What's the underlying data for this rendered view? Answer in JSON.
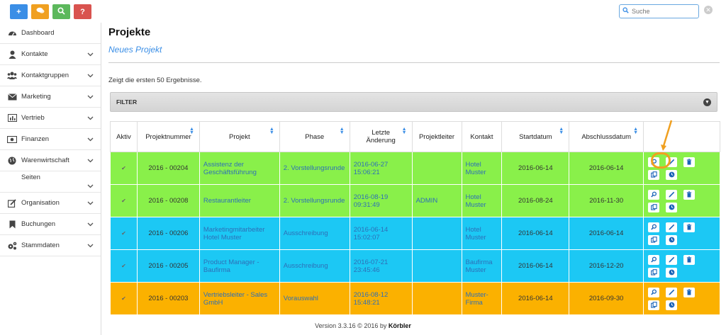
{
  "quick_actions": [
    {
      "name": "add",
      "icon": "plus-icon",
      "color": "#3a8ee6",
      "glyph": "+"
    },
    {
      "name": "chat",
      "icon": "chat-icon",
      "color": "#f0a020",
      "glyph": ""
    },
    {
      "name": "search",
      "icon": "search-icon",
      "color": "#5cb85c",
      "glyph": ""
    },
    {
      "name": "help",
      "icon": "question-icon",
      "color": "#d9534f",
      "glyph": "?"
    }
  ],
  "search": {
    "placeholder": "Suche"
  },
  "sidebar": {
    "items": [
      {
        "label": "Dashboard",
        "icon": "dashboard-icon",
        "chevron": false
      },
      {
        "label": "Kontakte",
        "icon": "user-icon",
        "chevron": true
      },
      {
        "label": "Kontaktgruppen",
        "icon": "users-icon",
        "chevron": true
      },
      {
        "label": "Marketing",
        "icon": "envelope-icon",
        "chevron": true
      },
      {
        "label": "Vertrieb",
        "icon": "chart-icon",
        "chevron": true
      },
      {
        "label": "Finanzen",
        "icon": "money-icon",
        "chevron": true
      },
      {
        "label": "Warenwirtschaft",
        "icon": "globe-icon",
        "chevron": true
      },
      {
        "label": "Seiten",
        "icon": "",
        "chevron": true
      },
      {
        "label": "Organisation",
        "icon": "edit-icon",
        "chevron": true
      },
      {
        "label": "Buchungen",
        "icon": "bookmark-icon",
        "chevron": true
      },
      {
        "label": "Stammdaten",
        "icon": "cogs-icon",
        "chevron": true
      }
    ]
  },
  "page": {
    "title": "Projekte",
    "new_link": "Neues Projekt",
    "results_text": "Zeigt die ersten 50 Ergebnisse.",
    "filter_label": "FILTER"
  },
  "table": {
    "headers": [
      "Aktiv",
      "Projektnummer",
      "Projekt",
      "Phase",
      "Letzte Änderung",
      "Projektleiter",
      "Kontakt",
      "Startdatum",
      "Abschlussdatum",
      ""
    ],
    "rows": [
      {
        "color": "green",
        "aktiv": "✔",
        "nummer": "2016 - 00204",
        "projekt": "Assistenz der Geschäftsführung",
        "phase": "2. Vorstellungsrunde",
        "aenderung": "2016-06-27 15:06:21",
        "leiter": "",
        "kontakt": "Hotel Muster",
        "start": "2016-06-14",
        "ende": "2016-06-14"
      },
      {
        "color": "green",
        "aktiv": "✔",
        "nummer": "2016 - 00208",
        "projekt": "Restaurantleiter",
        "phase": "2. Vorstellungsrunde",
        "aenderung": "2016-08-19 09:31:49",
        "leiter": "ADMIN",
        "kontakt": "Hotel Muster",
        "start": "2016-08-24",
        "ende": "2016-11-30"
      },
      {
        "color": "cyan",
        "aktiv": "✔",
        "nummer": "2016 - 00206",
        "projekt": "Marketingmitarbeiter Hotel Muster",
        "phase": "Ausschreibung",
        "aenderung": "2016-06-14 15:02:07",
        "leiter": "",
        "kontakt": "Hotel Muster",
        "start": "2016-06-14",
        "ende": "2016-06-14"
      },
      {
        "color": "cyan",
        "aktiv": "✔",
        "nummer": "2016 - 00205",
        "projekt": "Product Manager - Baufirma",
        "phase": "Ausschreibung",
        "aenderung": "2016-07-21 23:45:46",
        "leiter": "",
        "kontakt": "Baufirma Muster",
        "start": "2016-06-14",
        "ende": "2016-12-20"
      },
      {
        "color": "orange",
        "aktiv": "✔",
        "nummer": "2016 - 00203",
        "projekt": "Vertriebsleiter - Sales GmbH",
        "phase": "Vorauswahl",
        "aenderung": "2016-08-12 15:48:21",
        "leiter": "",
        "kontakt": "Muster-Firma",
        "start": "2016-06-14",
        "ende": "2016-09-30"
      }
    ]
  },
  "footer": {
    "version": "Version 3.3.16 © 2016 by ",
    "brand": "Körbler"
  },
  "colors": {
    "green_row": "#89f04a",
    "cyan_row": "#1cc8f4",
    "orange_row": "#fbb100",
    "link": "#2e6fb7",
    "highlight": "#f0a020"
  }
}
